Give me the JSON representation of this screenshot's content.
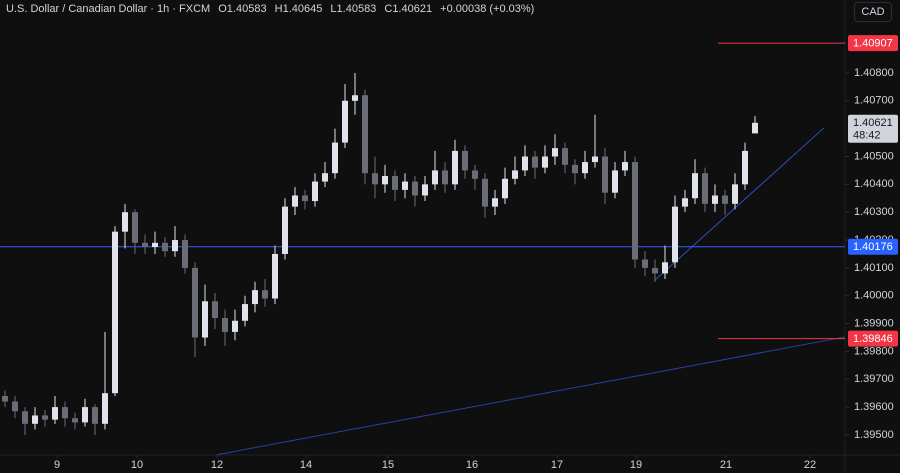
{
  "chart_data": {
    "type": "candlestick",
    "header": {
      "title": "U.S. Dollar / Canadian Dollar · 1h · FXCM",
      "ohlc": [
        "O1.40583",
        "H1.40645",
        "L1.40583",
        "C1.40621"
      ],
      "change": "+0.00038 (+0.03%)"
    },
    "currency_button": "CAD",
    "up_color": "#e0e3eb",
    "down_color": "#6a6d78",
    "grid": false,
    "xlim": [
      -0.5,
      84
    ],
    "xticks": [
      {
        "value": 5.2,
        "label": "9"
      },
      {
        "value": 13.2,
        "label": "10"
      },
      {
        "value": 21.2,
        "label": "12"
      },
      {
        "value": 30.1,
        "label": "14"
      },
      {
        "value": 38.3,
        "label": "15"
      },
      {
        "value": 46.7,
        "label": "16"
      },
      {
        "value": 55.2,
        "label": "17"
      },
      {
        "value": 63.1,
        "label": "19"
      },
      {
        "value": 72.1,
        "label": "21"
      },
      {
        "value": 80.5,
        "label": "22"
      }
    ],
    "ylim": [
      1.39428,
      1.41062
    ],
    "yticks": [
      {
        "value": 1.395,
        "label": "1.39500"
      },
      {
        "value": 1.396,
        "label": "1.39600"
      },
      {
        "value": 1.397,
        "label": "1.39700"
      },
      {
        "value": 1.398,
        "label": "1.39800"
      },
      {
        "value": 1.399,
        "label": "1.39900"
      },
      {
        "value": 1.4,
        "label": "1.40000"
      },
      {
        "value": 1.401,
        "label": "1.40100"
      },
      {
        "value": 1.402,
        "label": "1.40200"
      },
      {
        "value": 1.403,
        "label": "1.40300"
      },
      {
        "value": 1.404,
        "label": "1.40400"
      },
      {
        "value": 1.405,
        "label": "1.40500"
      },
      {
        "value": 1.407,
        "label": "1.40700"
      },
      {
        "value": 1.408,
        "label": "1.40800"
      }
    ],
    "candles": [
      [
        1.3964,
        1.3966,
        1.396,
        1.3962
      ],
      [
        1.3962,
        1.3964,
        1.3956,
        1.39585
      ],
      [
        1.39585,
        1.396,
        1.395,
        1.3954
      ],
      [
        1.3954,
        1.396,
        1.3952,
        1.3957
      ],
      [
        1.3957,
        1.3959,
        1.3953,
        1.39555
      ],
      [
        1.39555,
        1.3964,
        1.3954,
        1.396
      ],
      [
        1.396,
        1.3962,
        1.3953,
        1.3956
      ],
      [
        1.3956,
        1.3958,
        1.3952,
        1.39545
      ],
      [
        1.39545,
        1.3963,
        1.3953,
        1.396
      ],
      [
        1.396,
        1.3961,
        1.395,
        1.3954
      ],
      [
        1.3954,
        1.3987,
        1.3952,
        1.3965
      ],
      [
        1.3965,
        1.4025,
        1.3964,
        1.4023
      ],
      [
        1.4023,
        1.4033,
        1.4017,
        1.403
      ],
      [
        1.403,
        1.4031,
        1.4015,
        1.4019
      ],
      [
        1.4019,
        1.4022,
        1.4015,
        1.40175
      ],
      [
        1.40175,
        1.4023,
        1.4015,
        1.4019
      ],
      [
        1.4019,
        1.4021,
        1.4014,
        1.4016
      ],
      [
        1.4016,
        1.4025,
        1.4014,
        1.402
      ],
      [
        1.402,
        1.4022,
        1.4008,
        1.401
      ],
      [
        1.401,
        1.4012,
        1.3978,
        1.3985
      ],
      [
        1.3985,
        1.4004,
        1.3982,
        1.3998
      ],
      [
        1.3998,
        1.4001,
        1.3988,
        1.3992
      ],
      [
        1.3992,
        1.3995,
        1.3982,
        1.3987
      ],
      [
        1.3987,
        1.3995,
        1.3984,
        1.3991
      ],
      [
        1.3991,
        1.4,
        1.3989,
        1.3997
      ],
      [
        1.3997,
        1.4005,
        1.3994,
        1.4002
      ],
      [
        1.4002,
        1.4006,
        1.3996,
        1.3999
      ],
      [
        1.3999,
        1.4018,
        1.3997,
        1.4015
      ],
      [
        1.4015,
        1.4035,
        1.4013,
        1.4032
      ],
      [
        1.4032,
        1.4039,
        1.4029,
        1.4036
      ],
      [
        1.4036,
        1.4038,
        1.4031,
        1.4034
      ],
      [
        1.4034,
        1.4044,
        1.4032,
        1.4041
      ],
      [
        1.4041,
        1.4048,
        1.4039,
        1.4044
      ],
      [
        1.4044,
        1.406,
        1.4042,
        1.4055
      ],
      [
        1.4055,
        1.4076,
        1.4053,
        1.407
      ],
      [
        1.407,
        1.408,
        1.4065,
        1.4072
      ],
      [
        1.4072,
        1.4074,
        1.404,
        1.4044
      ],
      [
        1.4044,
        1.405,
        1.4035,
        1.404
      ],
      [
        1.404,
        1.4047,
        1.4037,
        1.4043
      ],
      [
        1.4043,
        1.4045,
        1.4034,
        1.4038
      ],
      [
        1.4038,
        1.4044,
        1.4035,
        1.4041
      ],
      [
        1.4041,
        1.4043,
        1.4032,
        1.4036
      ],
      [
        1.4036,
        1.4043,
        1.4034,
        1.404
      ],
      [
        1.404,
        1.4052,
        1.4038,
        1.4045
      ],
      [
        1.4045,
        1.4048,
        1.4037,
        1.404
      ],
      [
        1.404,
        1.4056,
        1.4038,
        1.4052
      ],
      [
        1.4052,
        1.4054,
        1.4042,
        1.4045
      ],
      [
        1.4045,
        1.4047,
        1.4038,
        1.4042
      ],
      [
        1.4042,
        1.4044,
        1.4028,
        1.4032
      ],
      [
        1.4032,
        1.4038,
        1.4029,
        1.4035
      ],
      [
        1.4035,
        1.4046,
        1.4033,
        1.4042
      ],
      [
        1.4042,
        1.405,
        1.404,
        1.4045
      ],
      [
        1.4045,
        1.4054,
        1.4043,
        1.405
      ],
      [
        1.405,
        1.4052,
        1.4042,
        1.4046
      ],
      [
        1.4046,
        1.4054,
        1.4044,
        1.405
      ],
      [
        1.405,
        1.4058,
        1.4047,
        1.4053
      ],
      [
        1.4053,
        1.4055,
        1.4044,
        1.4047
      ],
      [
        1.4047,
        1.4049,
        1.404,
        1.4044
      ],
      [
        1.4044,
        1.4052,
        1.4042,
        1.4048
      ],
      [
        1.4048,
        1.4065,
        1.4046,
        1.405
      ],
      [
        1.405,
        1.4053,
        1.4033,
        1.4037
      ],
      [
        1.4037,
        1.4048,
        1.4035,
        1.4045
      ],
      [
        1.4045,
        1.4052,
        1.4043,
        1.4048
      ],
      [
        1.4048,
        1.405,
        1.401,
        1.4013
      ],
      [
        1.4013,
        1.4016,
        1.4007,
        1.401
      ],
      [
        1.401,
        1.4013,
        1.4005,
        1.4008
      ],
      [
        1.4008,
        1.4018,
        1.4006,
        1.4012
      ],
      [
        1.4012,
        1.4036,
        1.401,
        1.4032
      ],
      [
        1.4032,
        1.4038,
        1.403,
        1.4035
      ],
      [
        1.4035,
        1.4049,
        1.4033,
        1.4044
      ],
      [
        1.4044,
        1.4046,
        1.403,
        1.4033
      ],
      [
        1.4033,
        1.404,
        1.403,
        1.4036
      ],
      [
        1.4036,
        1.4038,
        1.4029,
        1.4033
      ],
      [
        1.4033,
        1.4044,
        1.4031,
        1.404
      ],
      [
        1.404,
        1.4055,
        1.4038,
        1.4052
      ],
      [
        1.40583,
        1.40645,
        1.40583,
        1.40621
      ]
    ],
    "levels": [
      {
        "value": 1.40907,
        "color": "#f23645",
        "from": 71.3
      },
      {
        "value": 1.40176,
        "color": "#2962ff"
      },
      {
        "value": 1.39846,
        "color": "#f23645",
        "from": 71.3
      }
    ],
    "trendlines": [
      {
        "x": [
          21.2,
          84
        ],
        "y": [
          1.39429,
          1.39852
        ],
        "color": "#2a3fa8"
      },
      {
        "x": [
          64.9,
          81.9
        ],
        "y": [
          1.40053,
          1.40603
        ],
        "color": "#2a52be"
      }
    ],
    "last_price": {
      "value": 1.40621,
      "countdown": "48:42"
    }
  }
}
